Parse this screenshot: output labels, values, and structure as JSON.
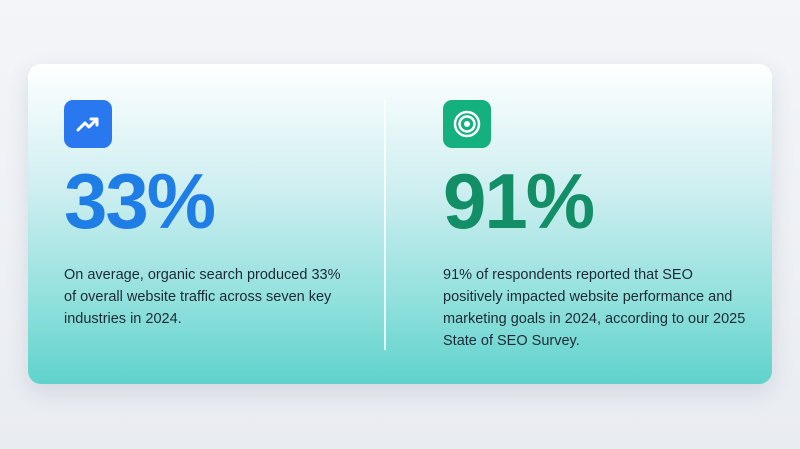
{
  "stats": [
    {
      "figure": "33%",
      "description": "On average, organic search produced 33% of overall website traffic across seven key industries in 2024."
    },
    {
      "figure": "91%",
      "description": "91% of respondents reported that SEO positively impacted website performance and marketing goals in 2024, according to our 2025 State of SEO Survey."
    }
  ]
}
